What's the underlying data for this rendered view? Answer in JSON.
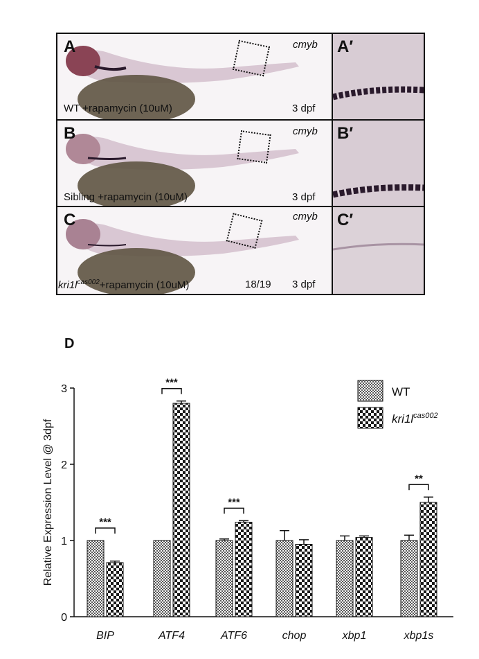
{
  "panels": {
    "A": {
      "label": "A",
      "gene": "cmyb",
      "condition": "WT +rapamycin (10uM)",
      "stage": "3 dpf"
    },
    "A2": {
      "label": "A′"
    },
    "B": {
      "label": "B",
      "gene": "cmyb",
      "condition": "Sibling +rapamycin (10uM)",
      "stage": "3 dpf"
    },
    "B2": {
      "label": "B′"
    },
    "C": {
      "label": "C",
      "gene": "cmyb",
      "condition_prefix": "kri1l",
      "condition_sup": "cas002",
      "condition_suffix": "+rapamycin (10uM)",
      "ratio": "18/19",
      "stage": "3 dpf"
    },
    "C2": {
      "label": "C′"
    },
    "D": {
      "label": "D"
    }
  },
  "colors": {
    "wt_fill": "#cfcfcf",
    "mut_fill": "#1a1a1a",
    "embryo_body": "#d9c7d3",
    "yolk": "#5e5442",
    "stain": "#2a1a2c",
    "closeup_bg": "#d8ccd4"
  },
  "chart_data": {
    "type": "bar",
    "ylabel": "Relative Expression Level @ 3dpf",
    "ylim": [
      0,
      3
    ],
    "yticks": [
      0,
      1,
      2,
      3
    ],
    "categories": [
      "BIP",
      "ATF4",
      "ATF6",
      "chop",
      "xbp1",
      "xbp1s"
    ],
    "series": [
      {
        "name": "WT",
        "pattern": "fine-check",
        "values": [
          1.0,
          1.0,
          1.0,
          1.0,
          1.0,
          1.0
        ],
        "errors": [
          0.0,
          0.0,
          0.02,
          0.13,
          0.06,
          0.07
        ]
      },
      {
        "name_prefix": "kri1l",
        "name_sup": "cas002",
        "pattern": "coarse-check",
        "values": [
          0.71,
          2.8,
          1.24,
          0.95,
          1.04,
          1.5
        ],
        "errors": [
          0.02,
          0.03,
          0.02,
          0.06,
          0.02,
          0.07
        ]
      }
    ],
    "significance": [
      "***",
      "***",
      "***",
      "",
      "",
      "**"
    ],
    "grid": false,
    "legend": "top-right"
  }
}
